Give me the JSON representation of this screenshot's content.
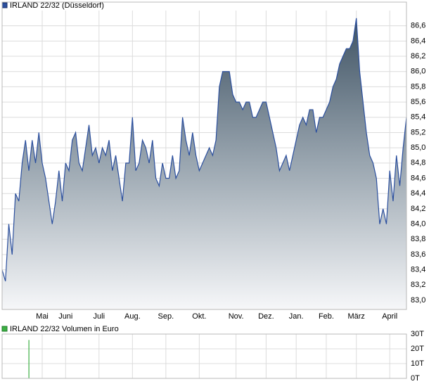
{
  "chart_data": [
    {
      "type": "area",
      "title": "IRLAND 22/32 (Düsseldorf)",
      "color": "#2b4f9e",
      "grid": true,
      "values": [
        83.4,
        83.25,
        84.0,
        83.6,
        84.4,
        84.3,
        84.8,
        85.1,
        84.7,
        85.1,
        84.8,
        85.2,
        84.8,
        84.6,
        84.3,
        84.0,
        84.3,
        84.7,
        84.3,
        84.8,
        84.7,
        85.1,
        85.2,
        84.8,
        84.7,
        85.0,
        85.3,
        84.9,
        85.0,
        84.8,
        85.0,
        84.9,
        85.1,
        84.7,
        84.9,
        84.6,
        84.3,
        84.8,
        84.8,
        85.4,
        84.7,
        84.8,
        85.1,
        85.0,
        84.8,
        85.1,
        84.6,
        84.5,
        84.8,
        84.6,
        84.6,
        84.9,
        84.6,
        84.7,
        85.4,
        85.1,
        84.9,
        85.2,
        84.9,
        84.7,
        84.8,
        84.9,
        85.0,
        84.9,
        85.1,
        85.8,
        86.0,
        86.0,
        86.0,
        85.7,
        85.6,
        85.6,
        85.5,
        85.6,
        85.6,
        85.4,
        85.4,
        85.5,
        85.6,
        85.6,
        85.4,
        85.2,
        85.0,
        84.7,
        84.8,
        84.9,
        84.7,
        84.9,
        85.1,
        85.3,
        85.4,
        85.3,
        85.5,
        85.5,
        85.2,
        85.4,
        85.4,
        85.5,
        85.6,
        85.8,
        85.9,
        86.1,
        86.2,
        86.3,
        86.3,
        86.4,
        86.7,
        86.0,
        85.6,
        85.2,
        84.9,
        84.8,
        84.6,
        84.0,
        84.2,
        84.0,
        84.7,
        84.3,
        84.9,
        84.5,
        85.0,
        85.4
      ],
      "xlim": [
        0,
        121
      ],
      "xticks": [
        {
          "value": 12,
          "label": "Mai"
        },
        {
          "value": 19,
          "label": "Juni"
        },
        {
          "value": 29,
          "label": "Juli"
        },
        {
          "value": 39,
          "label": "Aug."
        },
        {
          "value": 49,
          "label": "Sep."
        },
        {
          "value": 59,
          "label": "Okt."
        },
        {
          "value": 70,
          "label": "Nov."
        },
        {
          "value": 79,
          "label": "Dez."
        },
        {
          "value": 88,
          "label": "Jan."
        },
        {
          "value": 97,
          "label": "Feb."
        },
        {
          "value": 106,
          "label": "März"
        },
        {
          "value": 116,
          "label": "April"
        }
      ],
      "ylim": [
        82.88,
        86.8
      ],
      "yticks": [
        {
          "value": 83.0,
          "label": "83,0"
        },
        {
          "value": 83.2,
          "label": "83,2"
        },
        {
          "value": 83.4,
          "label": "83,4"
        },
        {
          "value": 83.6,
          "label": "83,6"
        },
        {
          "value": 83.8,
          "label": "83,8"
        },
        {
          "value": 84.0,
          "label": "84,0"
        },
        {
          "value": 84.2,
          "label": "84,2"
        },
        {
          "value": 84.4,
          "label": "84,4"
        },
        {
          "value": 84.6,
          "label": "84,6"
        },
        {
          "value": 84.8,
          "label": "84,8"
        },
        {
          "value": 85.0,
          "label": "85,0"
        },
        {
          "value": 85.2,
          "label": "85,2"
        },
        {
          "value": 85.4,
          "label": "85,4"
        },
        {
          "value": 85.6,
          "label": "85,6"
        },
        {
          "value": 85.8,
          "label": "85,8"
        },
        {
          "value": 86.0,
          "label": "86,0"
        },
        {
          "value": 86.2,
          "label": "86,2"
        },
        {
          "value": 86.4,
          "label": "86,4"
        },
        {
          "value": 86.6,
          "label": "86,6"
        }
      ]
    },
    {
      "type": "bar",
      "title": "IRLAND 22/32 Volumen in Euro",
      "color": "#3cb043",
      "grid": true,
      "x": [
        8
      ],
      "values": [
        26
      ],
      "xlim": [
        0,
        121
      ],
      "xticks": [
        12,
        19,
        29,
        39,
        49,
        59,
        70,
        79,
        88,
        97,
        106,
        116
      ],
      "ylim": [
        0,
        30
      ],
      "yticks": [
        {
          "value": 0,
          "label": "0T"
        },
        {
          "value": 10,
          "label": "10T"
        },
        {
          "value": 20,
          "label": "20T"
        },
        {
          "value": 30,
          "label": "30T"
        }
      ]
    }
  ]
}
